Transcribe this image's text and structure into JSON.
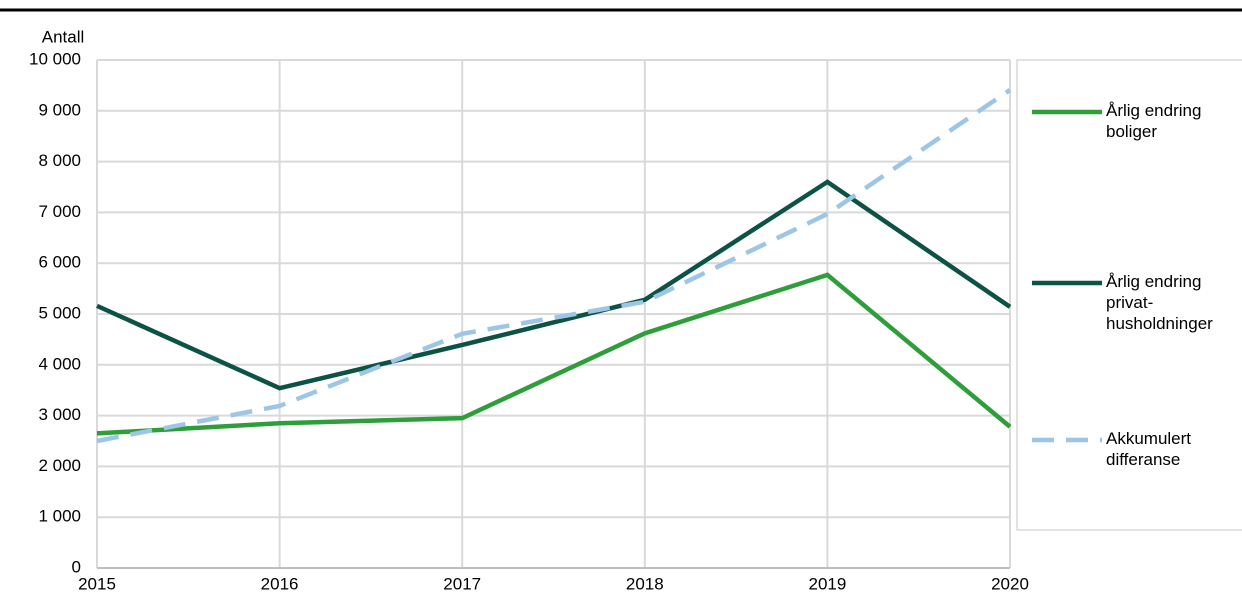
{
  "chart_data": {
    "type": "line",
    "y_label": "Antall",
    "x": [
      2015,
      2016,
      2017,
      2018,
      2019,
      2020
    ],
    "xlim": [
      2015,
      2020
    ],
    "xticks": [
      2015,
      2016,
      2017,
      2018,
      2019,
      2020
    ],
    "ylim": [
      0,
      10000
    ],
    "yticks": [
      0,
      {
        "value": 1000,
        "label": "1 000"
      },
      {
        "value": 2000,
        "label": "2 000"
      },
      {
        "value": 3000,
        "label": "3 000"
      },
      {
        "value": 4000,
        "label": "4 000"
      },
      {
        "value": 5000,
        "label": "5 000"
      },
      {
        "value": 6000,
        "label": "6 000"
      },
      {
        "value": 7000,
        "label": "7 000"
      },
      {
        "value": 8000,
        "label": "8 000"
      },
      {
        "value": 9000,
        "label": "9 000"
      },
      {
        "value": 10000,
        "label": "10 000"
      }
    ],
    "grid": true,
    "legend": "right",
    "series": [
      {
        "name": "Årlig endring boliger",
        "color": "#2e9e3a",
        "dash": false,
        "values": [
          2650,
          2850,
          2950,
          4620,
          5770,
          2780
        ]
      },
      {
        "name": "Årlig endring privat-husholdninger",
        "color": "#0c5345",
        "dash": false,
        "values": [
          5160,
          3540,
          4390,
          5280,
          7600,
          5140
        ]
      },
      {
        "name": "Akkumulert differanse",
        "color": "#9dc6e6",
        "dash": true,
        "values": [
          2500,
          3190,
          4610,
          5240,
          6970,
          9410
        ]
      }
    ]
  }
}
